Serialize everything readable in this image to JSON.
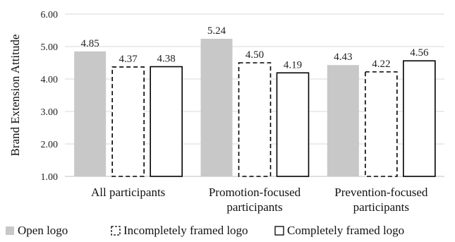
{
  "chart_data": {
    "type": "bar",
    "title": "",
    "xlabel": "",
    "ylabel": "Brand Extension Attitude",
    "ylim": [
      1.0,
      6.0
    ],
    "yticks": [
      "1.00",
      "2.00",
      "3.00",
      "4.00",
      "5.00",
      "6.00"
    ],
    "grid": true,
    "legend_position": "bottom",
    "categories": [
      [
        "All participants"
      ],
      [
        "Promotion-focused",
        "participants"
      ],
      [
        "Prevention-focused",
        "participants"
      ]
    ],
    "series": [
      {
        "name": "Open logo",
        "values": [
          4.85,
          5.24,
          4.43
        ],
        "labels": [
          "4.85",
          "5.24",
          "4.43"
        ],
        "style": "solid-fill",
        "color": "#c8c8c8"
      },
      {
        "name": "Incompletely framed logo",
        "values": [
          4.37,
          4.5,
          4.22
        ],
        "labels": [
          "4.37",
          "4.50",
          "4.22"
        ],
        "style": "dashed-outline",
        "color": "#000000"
      },
      {
        "name": "Completely framed logo",
        "values": [
          4.38,
          4.19,
          4.56
        ],
        "labels": [
          "4.38",
          "4.19",
          "4.56"
        ],
        "style": "solid-outline",
        "color": "#000000"
      }
    ]
  }
}
